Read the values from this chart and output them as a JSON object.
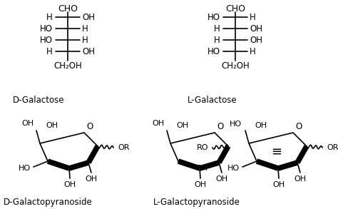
{
  "background": "#ffffff",
  "text_color": "#000000",
  "fig_width": 4.74,
  "fig_height": 2.93,
  "dpi": 100,
  "d_galactose_label": "D-Galactose",
  "l_galactose_label": "L-Galactose",
  "d_pyran_label": "D-Galactopyranoside",
  "l_pyran_label": "L-Galactopyranoside",
  "d_galactose_subst": [
    [
      "H",
      "OH"
    ],
    [
      "HO",
      "H"
    ],
    [
      "HO",
      "H"
    ],
    [
      "H",
      "OH"
    ]
  ],
  "l_galactose_subst": [
    [
      "HO",
      "H"
    ],
    [
      "H",
      "OH"
    ],
    [
      "H",
      "OH"
    ],
    [
      "HO",
      "H"
    ]
  ]
}
